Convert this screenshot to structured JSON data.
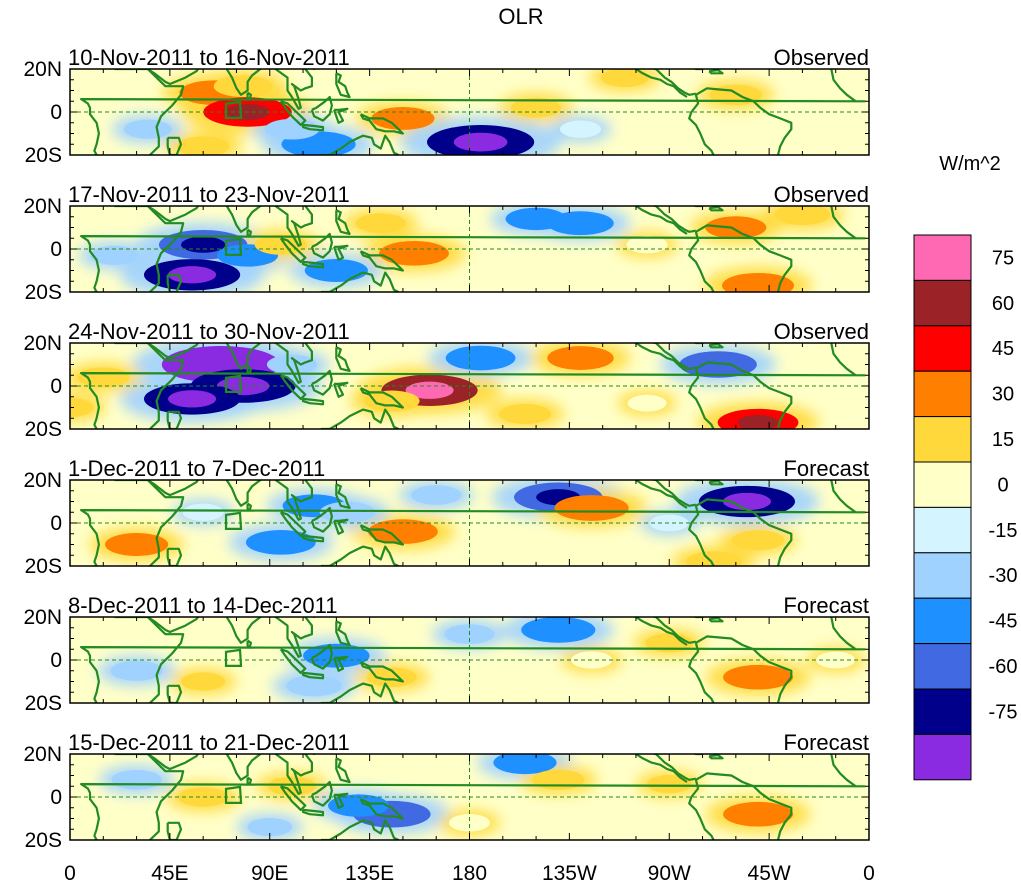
{
  "chart_data": {
    "type": "heatmap",
    "title": "OLR",
    "variable": "OLR",
    "units": "W/m^2",
    "x_ticks": [
      "0",
      "45E",
      "90E",
      "135E",
      "180",
      "135W",
      "90W",
      "45W",
      "0"
    ],
    "y_ticks": [
      "20N",
      "0",
      "20S"
    ],
    "colorbar": {
      "label": "W/m^2",
      "levels": [
        "75",
        "60",
        "45",
        "30",
        "15",
        "0",
        "-15",
        "-30",
        "-45",
        "-60",
        "-75"
      ],
      "colors": [
        "#ff69b4",
        "#9b2226",
        "#ff0000",
        "#ff7f00",
        "#ffd93b",
        "#ffffc8",
        "#d4f4ff",
        "#a0d2ff",
        "#1e90ff",
        "#4169e1",
        "#00008b",
        "#8a2be2"
      ]
    },
    "panels": [
      {
        "date_range": "10-Nov-2011 to 16-Nov-2011",
        "type": "Observed",
        "anomalies": [
          {
            "lon": 65,
            "lat": 9,
            "value": 38
          },
          {
            "lon": 80,
            "lat": 0,
            "value": 55
          },
          {
            "lon": 78,
            "lat": 12,
            "value": 28
          },
          {
            "lon": 60,
            "lat": -16,
            "value": 22
          },
          {
            "lon": 150,
            "lat": -3,
            "value": 32
          },
          {
            "lon": 185,
            "lat": -14,
            "value": -72
          },
          {
            "lon": 112,
            "lat": -15,
            "value": -42
          },
          {
            "lon": 100,
            "lat": -8,
            "value": -24
          },
          {
            "lon": 210,
            "lat": 2,
            "value": 20
          },
          {
            "lon": 300,
            "lat": 8,
            "value": 22
          },
          {
            "lon": 250,
            "lat": 16,
            "value": 18
          },
          {
            "lon": 35,
            "lat": -8,
            "value": -18
          },
          {
            "lon": 230,
            "lat": -8,
            "value": -12
          }
        ]
      },
      {
        "date_range": "17-Nov-2011 to 23-Nov-2011",
        "type": "Observed",
        "anomalies": [
          {
            "lon": 60,
            "lat": 2,
            "value": -55
          },
          {
            "lon": 55,
            "lat": -12,
            "value": -62
          },
          {
            "lon": 80,
            "lat": -3,
            "value": -30
          },
          {
            "lon": 95,
            "lat": 2,
            "value": 22
          },
          {
            "lon": 140,
            "lat": 12,
            "value": 20
          },
          {
            "lon": 155,
            "lat": -2,
            "value": 38
          },
          {
            "lon": 120,
            "lat": -10,
            "value": -32
          },
          {
            "lon": 210,
            "lat": 14,
            "value": -30
          },
          {
            "lon": 230,
            "lat": 12,
            "value": -35
          },
          {
            "lon": 300,
            "lat": 10,
            "value": 30
          },
          {
            "lon": 310,
            "lat": -17,
            "value": 40
          },
          {
            "lon": 330,
            "lat": 16,
            "value": 25
          },
          {
            "lon": 260,
            "lat": 2,
            "value": 12
          },
          {
            "lon": 20,
            "lat": -3,
            "value": -18
          }
        ]
      },
      {
        "date_range": "24-Nov-2011 to 30-Nov-2011",
        "type": "Observed",
        "anomalies": [
          {
            "lon": 68,
            "lat": 10,
            "value": -82
          },
          {
            "lon": 78,
            "lat": 0,
            "value": -70
          },
          {
            "lon": 55,
            "lat": -6,
            "value": -62
          },
          {
            "lon": 100,
            "lat": 10,
            "value": -20
          },
          {
            "lon": 162,
            "lat": -2,
            "value": 62
          },
          {
            "lon": 145,
            "lat": -7,
            "value": 25
          },
          {
            "lon": 185,
            "lat": 13,
            "value": -38
          },
          {
            "lon": 230,
            "lat": 13,
            "value": 35
          },
          {
            "lon": 205,
            "lat": -13,
            "value": 22
          },
          {
            "lon": 292,
            "lat": 10,
            "value": -45
          },
          {
            "lon": 310,
            "lat": -17,
            "value": 48
          },
          {
            "lon": 15,
            "lat": 4,
            "value": 22
          },
          {
            "lon": 0,
            "lat": -10,
            "value": 18
          },
          {
            "lon": 260,
            "lat": -8,
            "value": 10
          }
        ]
      },
      {
        "date_range": "1-Dec-2011 to 7-Dec-2011",
        "type": "Forecast",
        "anomalies": [
          {
            "lon": 220,
            "lat": 12,
            "value": -55
          },
          {
            "lon": 235,
            "lat": 7,
            "value": 42
          },
          {
            "lon": 305,
            "lat": 10,
            "value": -62
          },
          {
            "lon": 310,
            "lat": -8,
            "value": 22
          },
          {
            "lon": 150,
            "lat": -4,
            "value": 38
          },
          {
            "lon": 110,
            "lat": 8,
            "value": -32
          },
          {
            "lon": 125,
            "lat": 5,
            "value": -25
          },
          {
            "lon": 95,
            "lat": -9,
            "value": -38
          },
          {
            "lon": 30,
            "lat": -10,
            "value": 32
          },
          {
            "lon": 165,
            "lat": 13,
            "value": -20
          },
          {
            "lon": 290,
            "lat": -18,
            "value": 25
          },
          {
            "lon": 60,
            "lat": 5,
            "value": -12
          },
          {
            "lon": 270,
            "lat": 0,
            "value": -10
          }
        ]
      },
      {
        "date_range": "8-Dec-2011 to 14-Dec-2011",
        "type": "Forecast",
        "anomalies": [
          {
            "lon": 310,
            "lat": -8,
            "value": 38
          },
          {
            "lon": 220,
            "lat": 14,
            "value": -42
          },
          {
            "lon": 180,
            "lat": 12,
            "value": -20
          },
          {
            "lon": 120,
            "lat": 2,
            "value": -35
          },
          {
            "lon": 110,
            "lat": -12,
            "value": -25
          },
          {
            "lon": 145,
            "lat": -8,
            "value": 20
          },
          {
            "lon": 270,
            "lat": 8,
            "value": 18
          },
          {
            "lon": 30,
            "lat": -5,
            "value": -22
          },
          {
            "lon": 60,
            "lat": -10,
            "value": 15
          },
          {
            "lon": 235,
            "lat": 0,
            "value": 12
          },
          {
            "lon": 345,
            "lat": 0,
            "value": 10
          }
        ]
      },
      {
        "date_range": "15-Dec-2011 to 21-Dec-2011",
        "type": "Forecast",
        "anomalies": [
          {
            "lon": 310,
            "lat": -8,
            "value": 38
          },
          {
            "lon": 145,
            "lat": -8,
            "value": -45
          },
          {
            "lon": 130,
            "lat": -4,
            "value": -30
          },
          {
            "lon": 205,
            "lat": 16,
            "value": -32
          },
          {
            "lon": 220,
            "lat": 8,
            "value": 22
          },
          {
            "lon": 100,
            "lat": 5,
            "value": 18
          },
          {
            "lon": 60,
            "lat": 0,
            "value": 20
          },
          {
            "lon": 30,
            "lat": 8,
            "value": -20
          },
          {
            "lon": 270,
            "lat": 6,
            "value": 15
          },
          {
            "lon": 180,
            "lat": -12,
            "value": 12
          },
          {
            "lon": 90,
            "lat": -14,
            "value": -15
          }
        ]
      }
    ]
  }
}
